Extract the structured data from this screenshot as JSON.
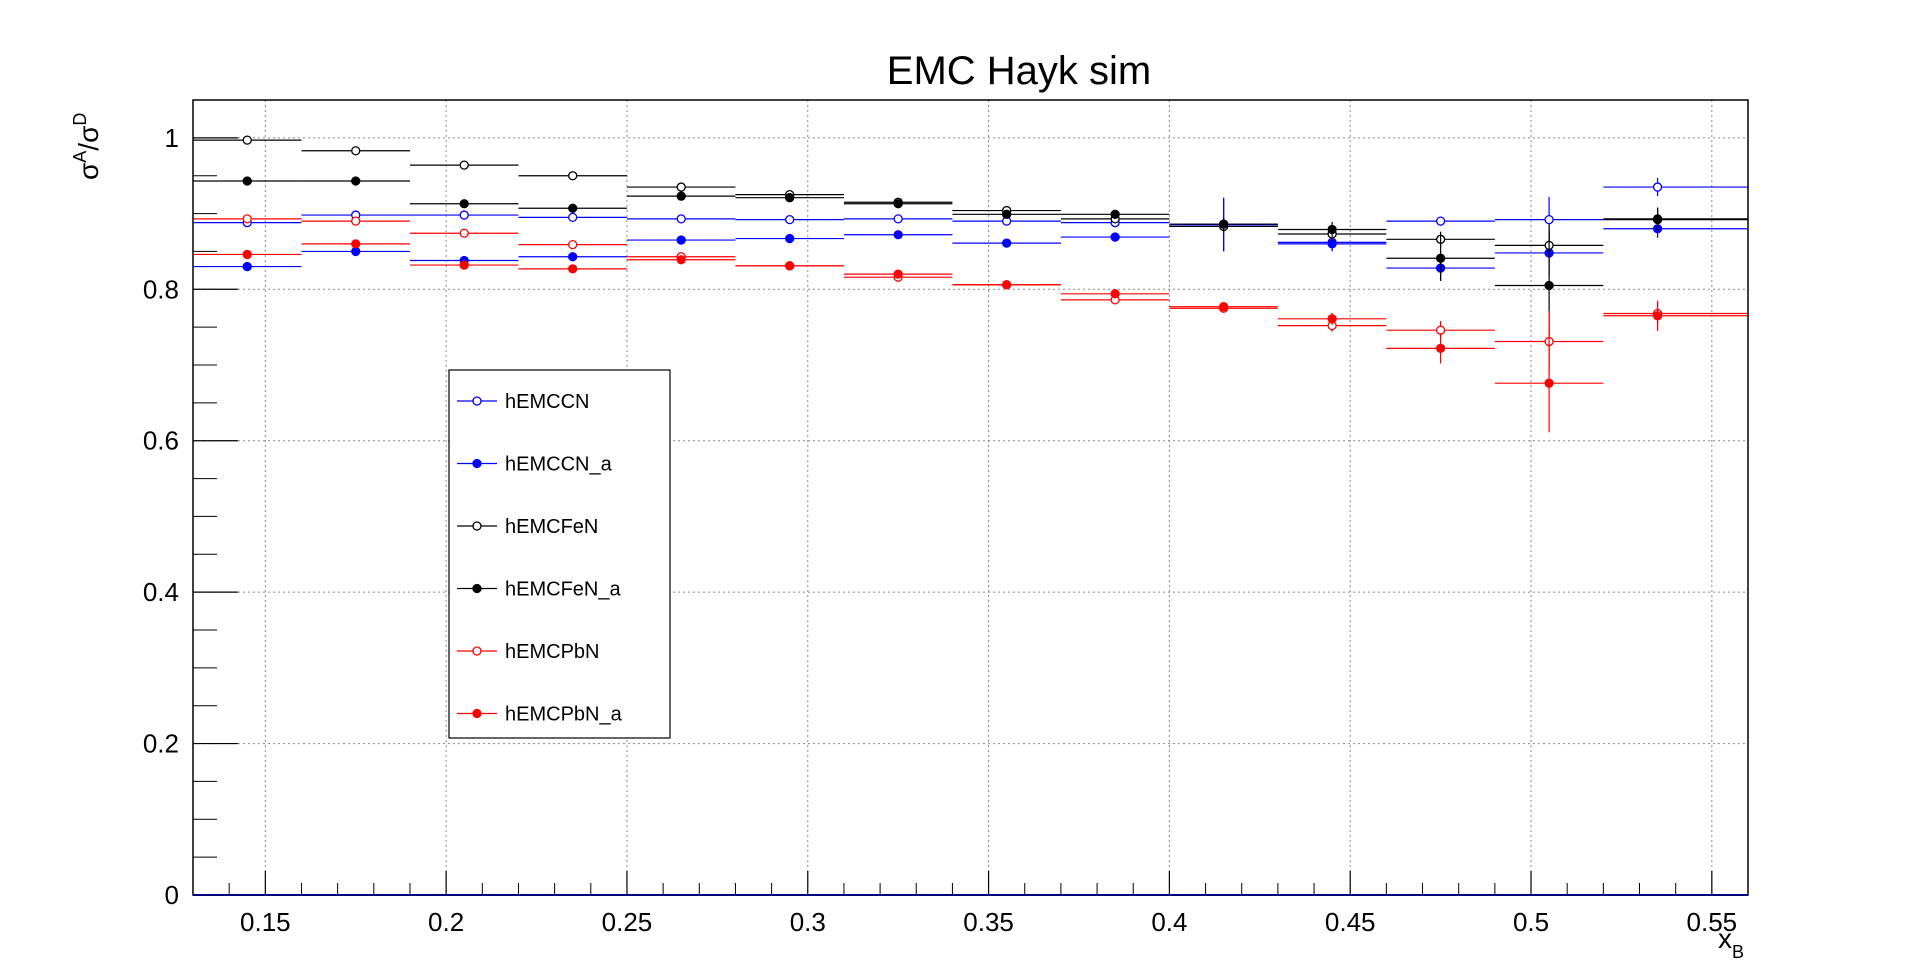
{
  "chart_data": {
    "type": "scatter",
    "title": "EMC Hayk sim",
    "xlabel": {
      "main": "x",
      "sub": "B"
    },
    "ylabel": {
      "base1": "σ",
      "sup1": "A",
      "sep": "/",
      "base2": "σ",
      "sup2": "D"
    },
    "xlim": [
      0.13,
      0.56
    ],
    "ylim": [
      0,
      1.05
    ],
    "x_ticks": [
      0.15,
      0.2,
      0.25,
      0.3,
      0.35,
      0.4,
      0.45,
      0.5,
      0.55
    ],
    "x_tick_labels": [
      "0.15",
      "0.2",
      "0.25",
      "0.3",
      "0.35",
      "0.4",
      "0.45",
      "0.5",
      "0.55"
    ],
    "y_ticks": [
      0,
      0.2,
      0.4,
      0.6,
      0.8,
      1
    ],
    "y_tick_labels": [
      "0",
      "0.2",
      "0.4",
      "0.6",
      "0.8",
      "1"
    ],
    "grid": true,
    "legend_position": "left-center",
    "bin_edges": [
      0.13,
      0.16,
      0.19,
      0.22,
      0.25,
      0.28,
      0.31,
      0.34,
      0.37,
      0.4,
      0.43,
      0.46,
      0.49,
      0.52,
      0.56
    ],
    "x": [
      0.145,
      0.175,
      0.205,
      0.235,
      0.265,
      0.295,
      0.325,
      0.355,
      0.385,
      0.415,
      0.445,
      0.475,
      0.505,
      0.535
    ],
    "series": [
      {
        "name": "hEMCCN",
        "color": "#0000ff",
        "marker": "open",
        "values": [
          0.888,
          0.898,
          0.898,
          0.895,
          0.893,
          0.892,
          0.893,
          0.89,
          0.888,
          0.885,
          0.862,
          0.89,
          0.892,
          0.935
        ],
        "errors": [
          0.004,
          0.004,
          0.004,
          0.004,
          0.004,
          0.004,
          0.004,
          0.005,
          0.006,
          0.035,
          0.01,
          0.006,
          0.03,
          0.012
        ]
      },
      {
        "name": "hEMCCN_a",
        "color": "#0000ff",
        "marker": "filled",
        "values": [
          0.83,
          0.85,
          0.838,
          0.843,
          0.865,
          0.867,
          0.872,
          0.861,
          0.869,
          0.886,
          0.86,
          0.828,
          0.848,
          0.88
        ],
        "errors": [
          0.004,
          0.004,
          0.004,
          0.004,
          0.004,
          0.004,
          0.004,
          0.005,
          0.006,
          0.035,
          0.01,
          0.015,
          0.03,
          0.012
        ]
      },
      {
        "name": "hEMCFeN",
        "color": "#000000",
        "marker": "open",
        "values": [
          0.997,
          0.983,
          0.964,
          0.95,
          0.935,
          0.925,
          0.915,
          0.904,
          0.893,
          0.883,
          0.873,
          0.866,
          0.858,
          0.893
        ],
        "errors": [
          0.004,
          0.004,
          0.004,
          0.004,
          0.004,
          0.004,
          0.004,
          0.005,
          0.005,
          0.008,
          0.01,
          0.01,
          0.015,
          0.015
        ]
      },
      {
        "name": "hEMCFeN_a",
        "color": "#000000",
        "marker": "filled",
        "values": [
          0.943,
          0.943,
          0.913,
          0.907,
          0.923,
          0.921,
          0.913,
          0.899,
          0.899,
          0.886,
          0.879,
          0.841,
          0.805,
          0.892
        ],
        "errors": [
          0.004,
          0.004,
          0.004,
          0.004,
          0.004,
          0.004,
          0.004,
          0.005,
          0.005,
          0.008,
          0.01,
          0.03,
          0.08,
          0.015
        ]
      },
      {
        "name": "hEMCPbN",
        "color": "#ff0000",
        "marker": "open",
        "values": [
          0.893,
          0.89,
          0.874,
          0.859,
          0.843,
          0.831,
          0.816,
          0.806,
          0.786,
          0.775,
          0.752,
          0.746,
          0.731,
          0.768
        ],
        "errors": [
          0.004,
          0.004,
          0.004,
          0.004,
          0.004,
          0.004,
          0.004,
          0.005,
          0.006,
          0.006,
          0.008,
          0.012,
          0.04,
          0.015
        ]
      },
      {
        "name": "hEMCPbN_a",
        "color": "#ff0000",
        "marker": "filled",
        "values": [
          0.846,
          0.86,
          0.832,
          0.827,
          0.839,
          0.831,
          0.82,
          0.806,
          0.794,
          0.777,
          0.761,
          0.722,
          0.676,
          0.765
        ],
        "errors": [
          0.004,
          0.004,
          0.004,
          0.004,
          0.004,
          0.004,
          0.004,
          0.005,
          0.006,
          0.006,
          0.008,
          0.02,
          0.065,
          0.02
        ]
      }
    ]
  }
}
